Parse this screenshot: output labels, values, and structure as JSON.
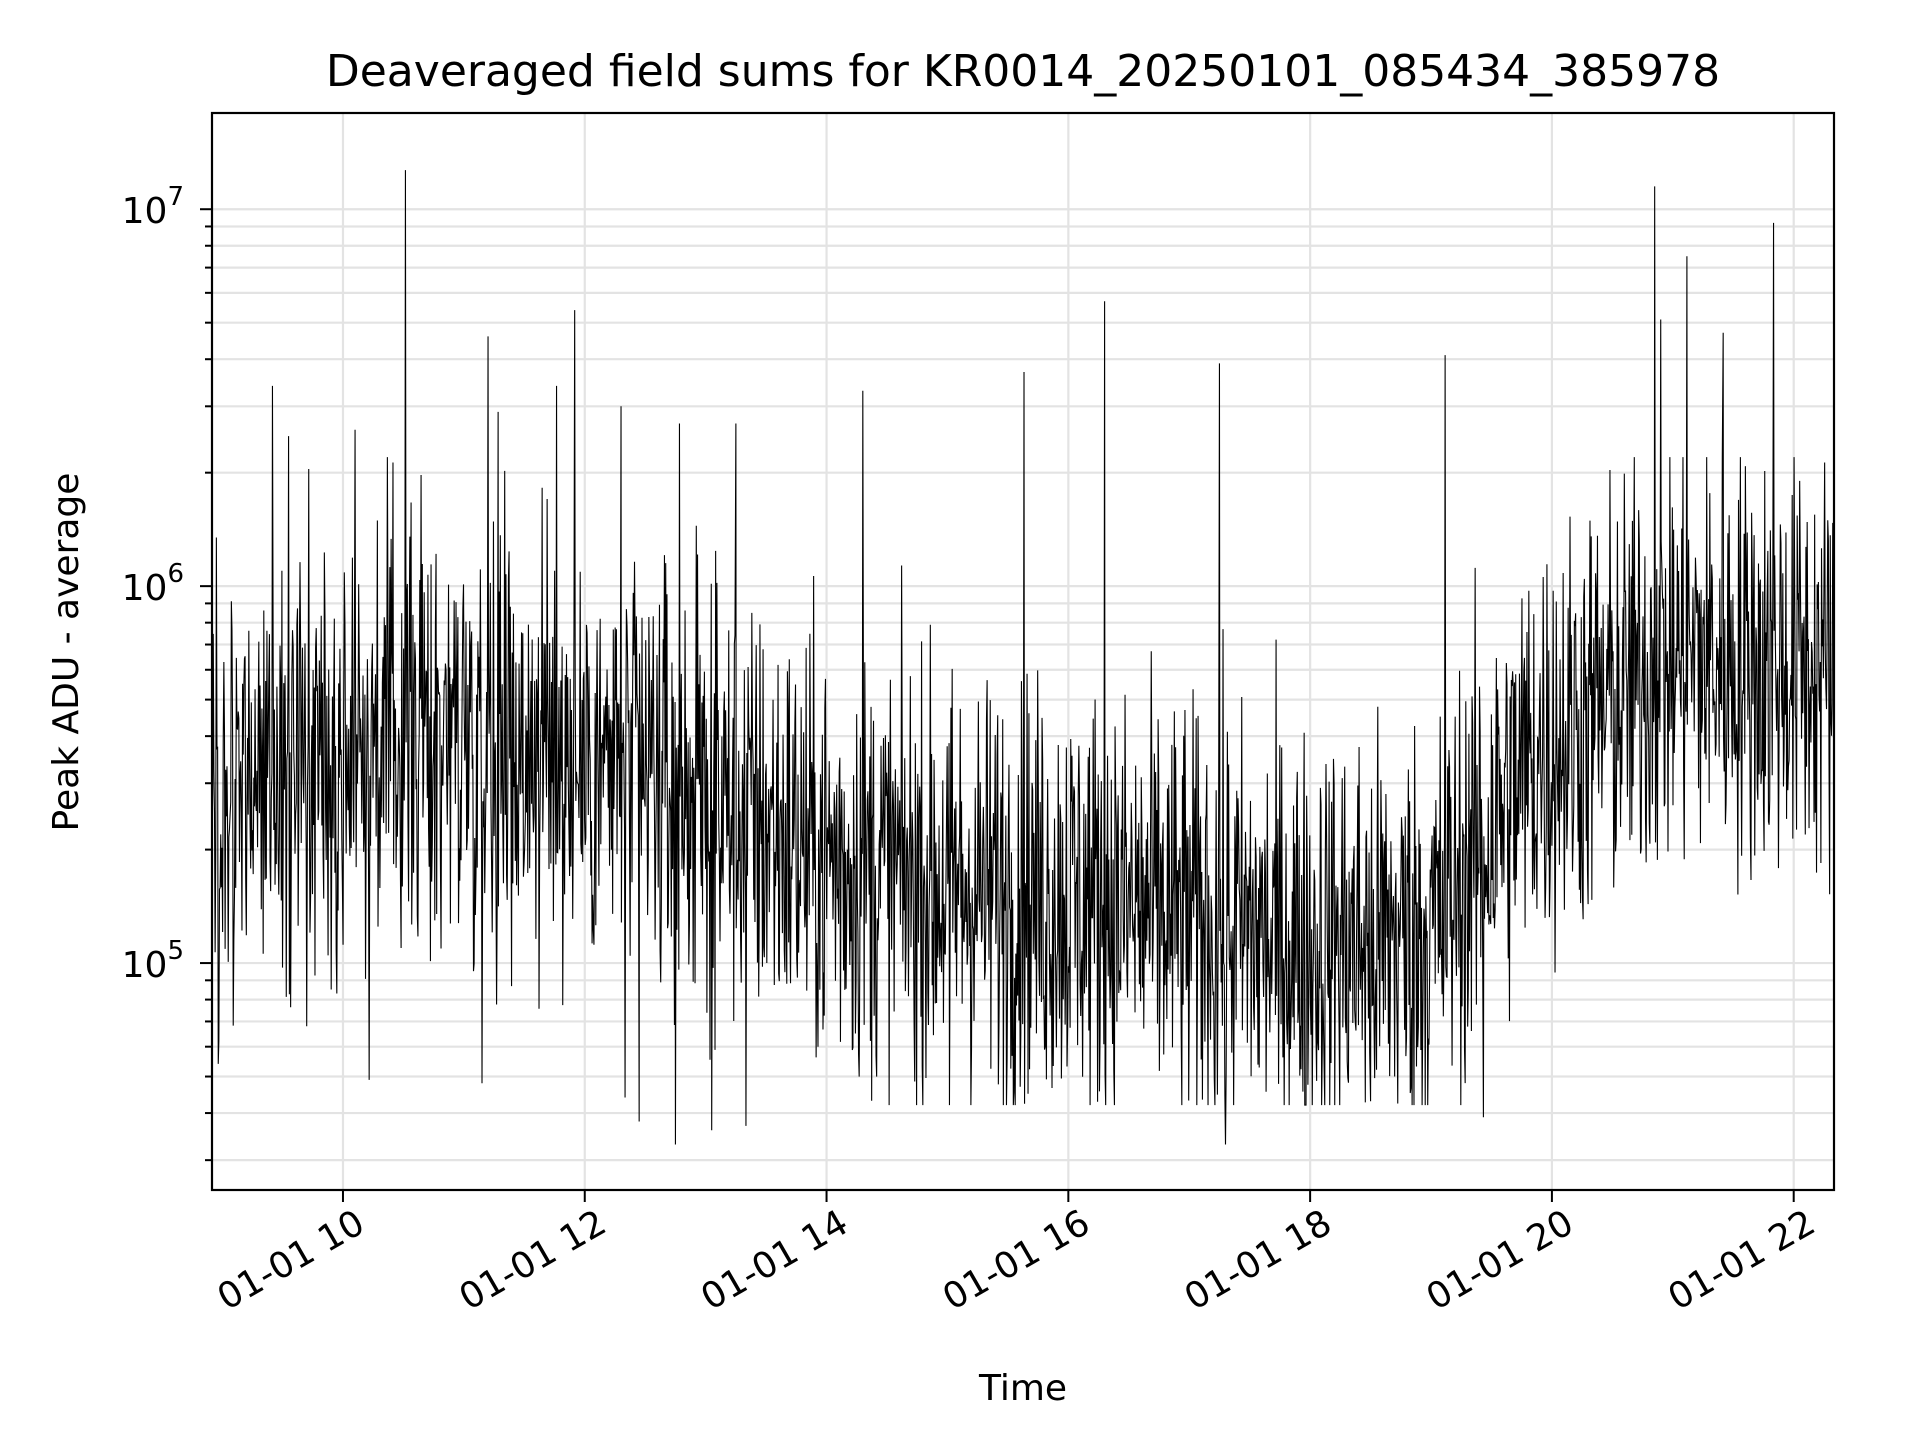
{
  "chart_data": {
    "type": "line",
    "title": "Deaveraged field sums for KR0014_20250101_085434_385978",
    "xlabel": "Time",
    "ylabel": "Peak ADU - average",
    "y_scale": "log",
    "xlim": [
      "2025-01-01 08:55",
      "2025-01-01 22:20"
    ],
    "ylim": [
      25000,
      18000000
    ],
    "x_ticks": [
      "01-01 10",
      "01-01 12",
      "01-01 14",
      "01-01 16",
      "01-01 18",
      "01-01 20",
      "01-01 22"
    ],
    "y_ticks": [
      {
        "base": "10",
        "exp": "5",
        "value": 100000
      },
      {
        "base": "10",
        "exp": "6",
        "value": 1000000
      },
      {
        "base": "10",
        "exp": "7",
        "value": 10000000
      }
    ],
    "grid": true,
    "line_color": "#000000",
    "series": [
      {
        "x_start": "2025-01-01 08:55",
        "x_end": "2025-01-01 22:20",
        "level_profile": [
          {
            "time": "2025-01-01 08:55",
            "y": 250000
          },
          {
            "time": "2025-01-01 10:00",
            "y": 380000
          },
          {
            "time": "2025-01-01 11:00",
            "y": 420000
          },
          {
            "time": "2025-01-01 12:00",
            "y": 340000
          },
          {
            "time": "2025-01-01 13:00",
            "y": 280000
          },
          {
            "time": "2025-01-01 14:00",
            "y": 190000
          },
          {
            "time": "2025-01-01 15:00",
            "y": 160000
          },
          {
            "time": "2025-01-01 16:00",
            "y": 150000
          },
          {
            "time": "2025-01-01 17:00",
            "y": 130000
          },
          {
            "time": "2025-01-01 18:00",
            "y": 110000
          },
          {
            "time": "2025-01-01 19:00",
            "y": 120000
          },
          {
            "time": "2025-01-01 19:50",
            "y": 350000
          },
          {
            "time": "2025-01-01 21:00",
            "y": 650000
          },
          {
            "time": "2025-01-01 22:20",
            "y": 600000
          }
        ],
        "peaks": [
          {
            "time": "2025-01-01 10:31",
            "y": 12700000
          },
          {
            "time": "2025-01-01 09:25",
            "y": 3400000
          },
          {
            "time": "2025-01-01 09:33",
            "y": 2500000
          },
          {
            "time": "2025-01-01 10:06",
            "y": 2600000
          },
          {
            "time": "2025-01-01 11:12",
            "y": 4600000
          },
          {
            "time": "2025-01-01 11:17",
            "y": 2900000
          },
          {
            "time": "2025-01-01 11:55",
            "y": 5400000
          },
          {
            "time": "2025-01-01 11:46",
            "y": 3400000
          },
          {
            "time": "2025-01-01 12:18",
            "y": 3000000
          },
          {
            "time": "2025-01-01 12:47",
            "y": 2700000
          },
          {
            "time": "2025-01-01 13:15",
            "y": 2700000
          },
          {
            "time": "2025-01-01 14:18",
            "y": 3300000
          },
          {
            "time": "2025-01-01 15:38",
            "y": 3700000
          },
          {
            "time": "2025-01-01 16:18",
            "y": 5700000
          },
          {
            "time": "2025-01-01 17:15",
            "y": 3900000
          },
          {
            "time": "2025-01-01 19:07",
            "y": 4100000
          },
          {
            "time": "2025-01-01 20:51",
            "y": 11500000
          },
          {
            "time": "2025-01-01 20:54",
            "y": 5100000
          },
          {
            "time": "2025-01-01 21:07",
            "y": 7500000
          },
          {
            "time": "2025-01-01 21:50",
            "y": 9200000
          },
          {
            "time": "2025-01-01 21:25",
            "y": 4700000
          }
        ],
        "troughs": [
          {
            "time": "2025-01-01 09:42",
            "y": 68000
          },
          {
            "time": "2025-01-01 10:13",
            "y": 49000
          },
          {
            "time": "2025-01-01 11:09",
            "y": 48000
          },
          {
            "time": "2025-01-01 12:20",
            "y": 44000
          },
          {
            "time": "2025-01-01 12:27",
            "y": 38000
          },
          {
            "time": "2025-01-01 12:45",
            "y": 33000
          },
          {
            "time": "2025-01-01 13:03",
            "y": 36000
          },
          {
            "time": "2025-01-01 13:20",
            "y": 37000
          },
          {
            "time": "2025-01-01 15:01",
            "y": 42000
          },
          {
            "time": "2025-01-01 15:40",
            "y": 45000
          },
          {
            "time": "2025-01-01 17:18",
            "y": 33000
          },
          {
            "time": "2025-01-01 18:30",
            "y": 43000
          },
          {
            "time": "2025-01-01 19:26",
            "y": 39000
          }
        ]
      }
    ]
  }
}
